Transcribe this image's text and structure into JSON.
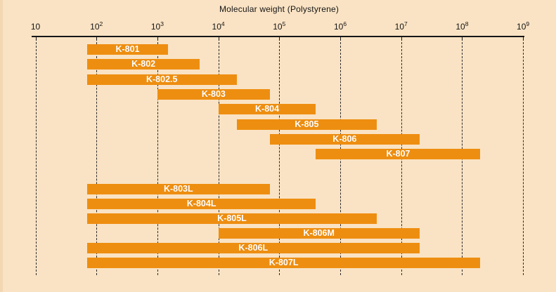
{
  "chart_data": {
    "type": "bar",
    "subtype": "horizontal-range",
    "title": "Molecular weight (Polystyrene)",
    "x_scale": "log10",
    "xlim": [
      10,
      1000000000
    ],
    "grid": "dashed-vertical",
    "legend": "none",
    "bar_color": "#EE8E10",
    "bar_label_color": "#FFFFFF",
    "background_color": "#FAE3C4",
    "x_ticks": [
      {
        "base": "10",
        "sup": "",
        "exp": 1
      },
      {
        "base": "10",
        "sup": "2",
        "exp": 2
      },
      {
        "base": "10",
        "sup": "3",
        "exp": 3
      },
      {
        "base": "10",
        "sup": "4",
        "exp": 4
      },
      {
        "base": "10",
        "sup": "5",
        "exp": 5
      },
      {
        "base": "10",
        "sup": "6",
        "exp": 6
      },
      {
        "base": "10",
        "sup": "7",
        "exp": 7
      },
      {
        "base": "10",
        "sup": "8",
        "exp": 8
      },
      {
        "base": "10",
        "sup": "9",
        "exp": 9
      }
    ],
    "series": [
      {
        "name": "K-801",
        "min": 70,
        "max": 1500,
        "group": 1
      },
      {
        "name": "K-802",
        "min": 70,
        "max": 5000,
        "group": 1
      },
      {
        "name": "K-802.5",
        "min": 70,
        "max": 20000,
        "group": 1
      },
      {
        "name": "K-803",
        "min": 1000,
        "max": 70000,
        "group": 1
      },
      {
        "name": "K-804",
        "min": 10000,
        "max": 400000,
        "group": 1
      },
      {
        "name": "K-805",
        "min": 20000,
        "max": 4000000,
        "group": 1
      },
      {
        "name": "K-806",
        "min": 70000,
        "max": 20000000,
        "group": 1
      },
      {
        "name": "K-807",
        "min": 400000,
        "max": 200000000,
        "group": 1
      },
      {
        "name": "K-803L",
        "min": 70,
        "max": 70000,
        "group": 2
      },
      {
        "name": "K-804L",
        "min": 70,
        "max": 400000,
        "group": 2
      },
      {
        "name": "K-805L",
        "min": 70,
        "max": 4000000,
        "group": 2
      },
      {
        "name": "K-806M",
        "min": 10000,
        "max": 20000000,
        "group": 2
      },
      {
        "name": "K-806L",
        "min": 70,
        "max": 20000000,
        "group": 2
      },
      {
        "name": "K-807L",
        "min": 70,
        "max": 200000000,
        "group": 2
      }
    ]
  }
}
